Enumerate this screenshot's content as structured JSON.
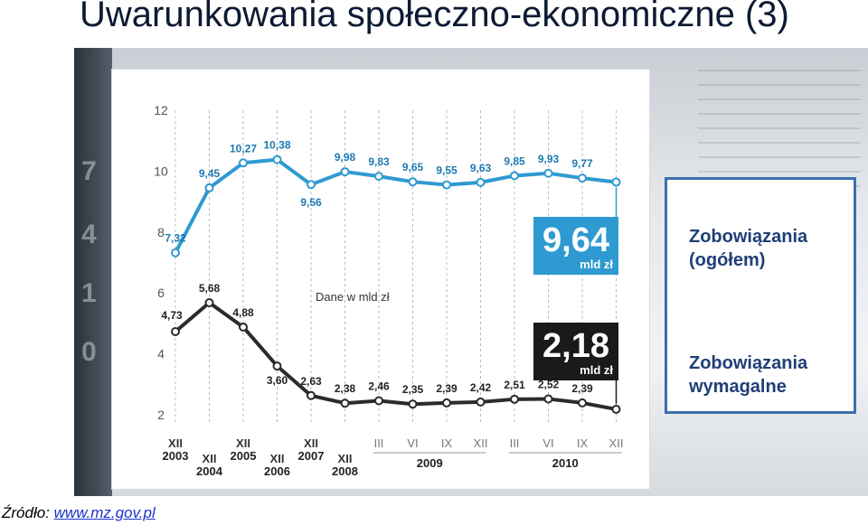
{
  "title": "Uwarunkowania społeczno-ekonomiczne (3)",
  "source_label": "Źródło:",
  "source_link": "www.mz.gov.pl",
  "legend": {
    "total": "Zobowiązania\n(ogółem)",
    "due": "Zobowiązania\nwymagalne"
  },
  "colors": {
    "total": "#2f9ad1",
    "due": "#2b2b2b",
    "legend_border": "#3d6fae",
    "legend_text": "#1f3f77"
  },
  "chart_data": {
    "type": "line",
    "note": "Dane w mld zł",
    "ylim": [
      2,
      12
    ],
    "yticks": [
      2,
      4,
      6,
      8,
      10,
      12
    ],
    "grid": true,
    "categories": [
      "XII 2003",
      "XII 2004",
      "XII 2005",
      "XII 2006",
      "XII 2007",
      "XII 2008",
      "III 2009",
      "VI 2009",
      "IX 2009",
      "XII 2009",
      "III 2010",
      "VI 2010",
      "IX 2010",
      "XII 2010"
    ],
    "x_tick_labels": [
      "XII",
      "XII",
      "XII",
      "XII",
      "XII",
      "XII",
      "III",
      "VI",
      "IX",
      "XII",
      "III",
      "VI",
      "IX",
      "XII"
    ],
    "x_year_labels": [
      "2003",
      "2004",
      "2005",
      "2006",
      "2007",
      "2008",
      "2009",
      "2010"
    ],
    "series": [
      {
        "values": [
          7.32,
          9.45,
          10.27,
          10.38,
          9.56,
          9.98,
          9.83,
          9.65,
          9.55,
          9.63,
          9.85,
          9.93,
          9.77,
          9.64
        ],
        "labels": [
          "7,32",
          "9,45",
          "10,27",
          "10,38",
          "9,56",
          "9,98",
          "9,83",
          "9,65",
          "9,55",
          "9,63",
          "9,85",
          "9,93",
          "9,77",
          ""
        ],
        "final_value": "9,64",
        "final_unit": "mld zł"
      },
      {
        "values": [
          4.73,
          5.68,
          4.88,
          3.6,
          2.63,
          2.38,
          2.46,
          2.35,
          2.39,
          2.42,
          2.51,
          2.52,
          2.39,
          2.18
        ],
        "labels": [
          "4,73",
          "5,68",
          "4,88",
          "3,60",
          "2,63",
          "2,38",
          "2,46",
          "2,35",
          "2,39",
          "2,42",
          "2,51",
          "2,52",
          "2,39",
          ""
        ],
        "final_value": "2,18",
        "final_unit": "mld zł"
      }
    ]
  }
}
